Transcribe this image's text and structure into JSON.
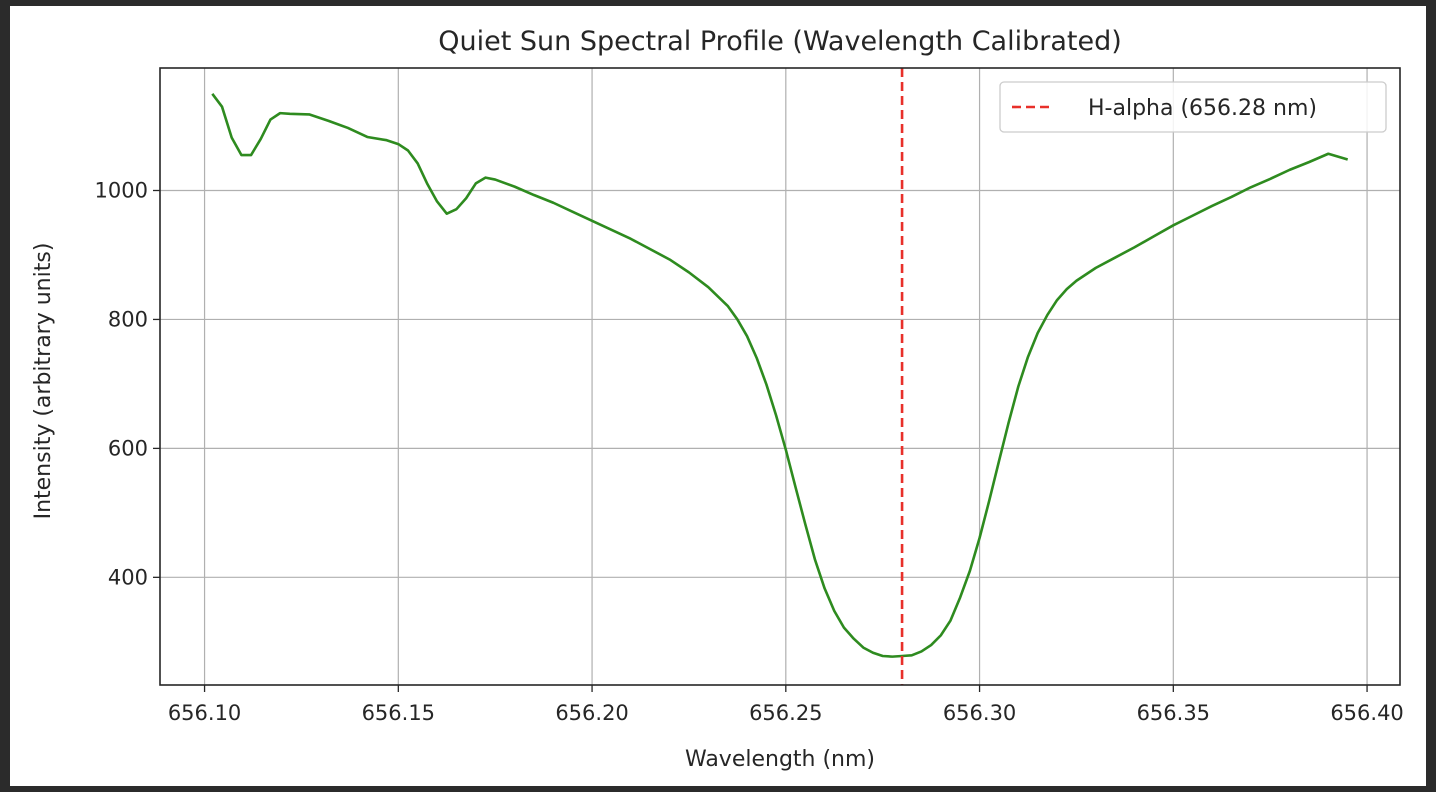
{
  "chart_data": {
    "type": "line",
    "title": "Quiet Sun Spectral Profile (Wavelength Calibrated)",
    "xlabel": "Wavelength (nm)",
    "ylabel": "Intensity (arbitrary units)",
    "xlim": [
      656.0885,
      656.4085
    ],
    "ylim": [
      233,
      1190
    ],
    "xticks": [
      656.1,
      656.15,
      656.2,
      656.25,
      656.3,
      656.35,
      656.4
    ],
    "xtick_labels": [
      "656.10",
      "656.15",
      "656.20",
      "656.25",
      "656.30",
      "656.35",
      "656.40"
    ],
    "yticks": [
      400,
      600,
      800,
      1000
    ],
    "ytick_labels": [
      "400",
      "600",
      "800",
      "1000"
    ],
    "grid": true,
    "legend_position": "top-right",
    "series": [
      {
        "color": "#2e8b1f",
        "style": "solid",
        "x": [
          656.102,
          656.1045,
          656.107,
          656.1095,
          656.112,
          656.1145,
          656.117,
          656.1195,
          656.122,
          656.127,
          656.132,
          656.137,
          656.142,
          656.147,
          656.15,
          656.1525,
          656.155,
          656.1575,
          656.16,
          656.1625,
          656.165,
          656.1675,
          656.17,
          656.1725,
          656.175,
          656.18,
          656.185,
          656.19,
          656.195,
          656.2,
          656.21,
          656.22,
          656.225,
          656.23,
          656.235,
          656.2375,
          656.24,
          656.2425,
          656.245,
          656.2475,
          656.25,
          656.2525,
          656.255,
          656.2575,
          656.26,
          656.2625,
          656.265,
          656.2675,
          656.27,
          656.2725,
          656.275,
          656.2775,
          656.28,
          656.2825,
          656.285,
          656.2875,
          656.29,
          656.2925,
          656.295,
          656.2975,
          656.3,
          656.3025,
          656.305,
          656.3075,
          656.31,
          656.3125,
          656.315,
          656.3175,
          656.32,
          656.3225,
          656.325,
          656.33,
          656.335,
          656.34,
          656.345,
          656.35,
          656.355,
          656.36,
          656.365,
          656.37,
          656.375,
          656.38,
          656.385,
          656.39,
          656.395
        ],
        "y": [
          1150,
          1130,
          1082,
          1055,
          1055,
          1080,
          1110,
          1120,
          1119,
          1118,
          1108,
          1097,
          1083,
          1078,
          1072,
          1062,
          1042,
          1010,
          983,
          964,
          971,
          988,
          1011,
          1020,
          1017,
          1006,
          993,
          981,
          967,
          953,
          925,
          893,
          873,
          850,
          821,
          800,
          774,
          740,
          699,
          651,
          598,
          540,
          483,
          428,
          383,
          348,
          322,
          305,
          291,
          283,
          278,
          277,
          278,
          279,
          285,
          295,
          310,
          333,
          369,
          410,
          461,
          519,
          580,
          640,
          696,
          742,
          779,
          807,
          830,
          847,
          860,
          880,
          896,
          912,
          929,
          946,
          961,
          976,
          990,
          1005,
          1018,
          1032,
          1044,
          1057,
          1048
        ]
      },
      {
        "name": "H-alpha (656.28 nm)",
        "color": "#e8302a",
        "style": "dashed",
        "vline_x": 656.28
      }
    ]
  }
}
